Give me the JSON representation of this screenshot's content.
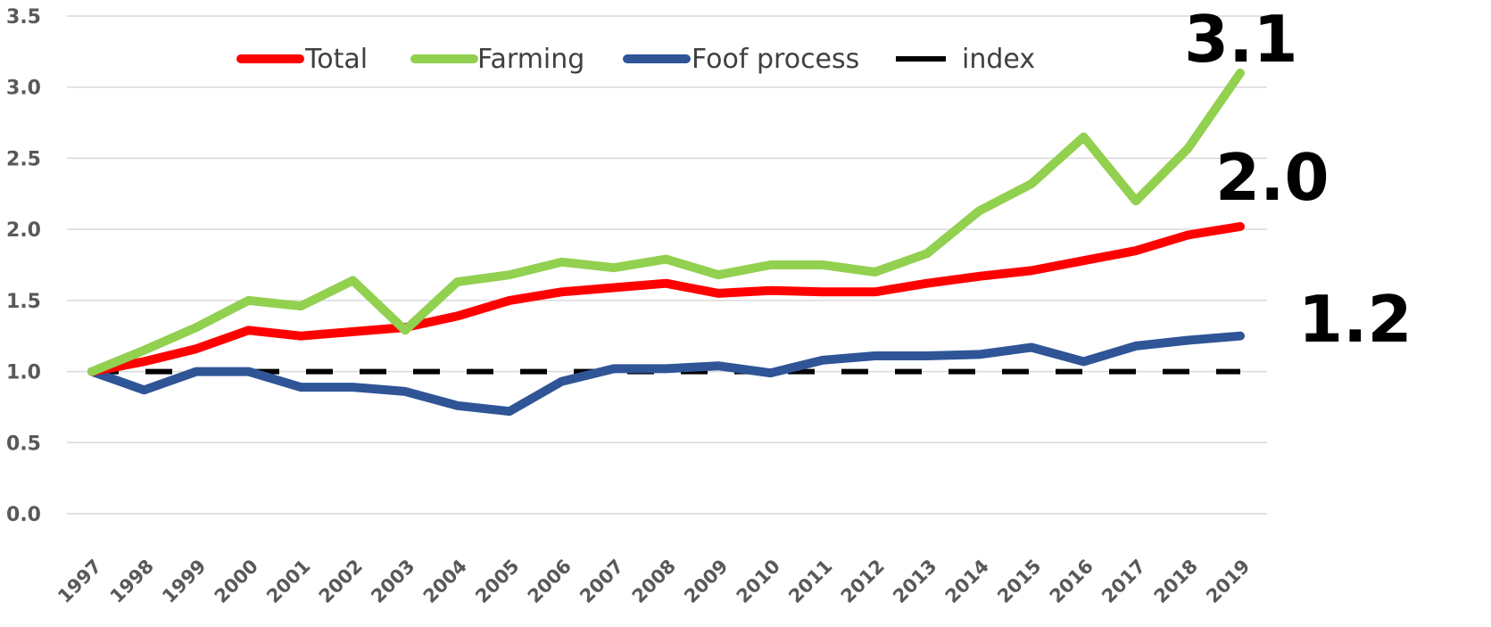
{
  "chart_data": {
    "type": "line",
    "title": "",
    "xlabel": "",
    "ylabel": "",
    "ylim": [
      0,
      3.5
    ],
    "yticks": [
      "0.0",
      "0.5",
      "1.0",
      "1.5",
      "2.0",
      "2.5",
      "3.0",
      "3.5"
    ],
    "grid": true,
    "legend_position": "top",
    "x": [
      "1997",
      "1998",
      "1999",
      "2000",
      "2001",
      "2002",
      "2003",
      "2004",
      "2005",
      "2006",
      "2007",
      "2008",
      "2009",
      "2010",
      "2011",
      "2012",
      "2013",
      "2014",
      "2015",
      "2016",
      "2017",
      "2018",
      "2019"
    ],
    "series": [
      {
        "name": "Total",
        "color": "#ff0000",
        "style": "solid",
        "values": [
          1.0,
          1.07,
          1.16,
          1.29,
          1.25,
          1.28,
          1.31,
          1.39,
          1.5,
          1.56,
          1.59,
          1.62,
          1.55,
          1.57,
          1.56,
          1.56,
          1.62,
          1.67,
          1.71,
          1.78,
          1.85,
          1.96,
          2.02
        ]
      },
      {
        "name": "Farming",
        "color": "#92d050",
        "style": "solid",
        "values": [
          1.0,
          1.15,
          1.31,
          1.5,
          1.46,
          1.64,
          1.29,
          1.63,
          1.68,
          1.77,
          1.73,
          1.79,
          1.68,
          1.75,
          1.75,
          1.7,
          1.83,
          2.13,
          2.32,
          2.65,
          2.2,
          2.57,
          3.1
        ]
      },
      {
        "name": "Foof process",
        "color": "#2f5597",
        "style": "solid",
        "values": [
          1.0,
          0.87,
          1.0,
          1.0,
          0.89,
          0.89,
          0.86,
          0.76,
          0.72,
          0.93,
          1.02,
          1.02,
          1.04,
          0.99,
          1.08,
          1.11,
          1.11,
          1.12,
          1.17,
          1.07,
          1.18,
          1.22,
          1.25
        ]
      },
      {
        "name": "index",
        "color": "#000000",
        "style": "dashed",
        "values": [
          1.0,
          1.0,
          1.0,
          1.0,
          1.0,
          1.0,
          1.0,
          1.0,
          1.0,
          1.0,
          1.0,
          1.0,
          1.0,
          1.0,
          1.0,
          1.0,
          1.0,
          1.0,
          1.0,
          1.0,
          1.0,
          1.0,
          1.0
        ]
      }
    ],
    "annotations": [
      {
        "text": "3.1",
        "series": "Farming"
      },
      {
        "text": "2.0",
        "series": "Total"
      },
      {
        "text": "1.2",
        "series": "Foof process"
      }
    ]
  }
}
